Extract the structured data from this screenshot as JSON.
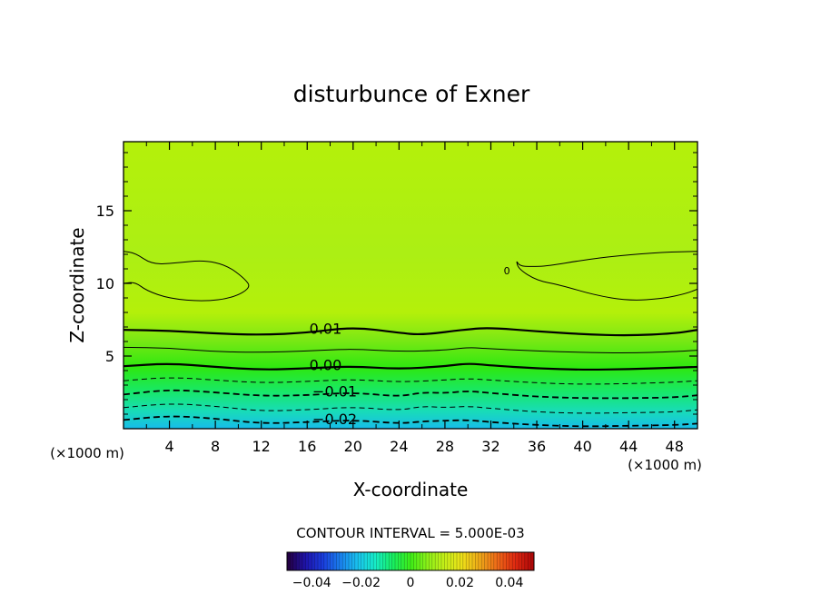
{
  "chart_data": {
    "type": "heatmap",
    "title": "disturbunce of Exner",
    "xlabel": "X-coordinate",
    "ylabel": "Z-coordinate",
    "x_unit_left": "(×1000 m)",
    "x_unit_right": "(×1000 m)",
    "xlim": [
      0,
      50
    ],
    "ylim": [
      0,
      19.75
    ],
    "xticks": [
      {
        "value": 4,
        "label": "4"
      },
      {
        "value": 8,
        "label": "8"
      },
      {
        "value": 12,
        "label": "12"
      },
      {
        "value": 16,
        "label": "16"
      },
      {
        "value": 20,
        "label": "20"
      },
      {
        "value": 24,
        "label": "24"
      },
      {
        "value": 28,
        "label": "28"
      },
      {
        "value": 32,
        "label": "32"
      },
      {
        "value": 36,
        "label": "36"
      },
      {
        "value": 40,
        "label": "40"
      },
      {
        "value": 44,
        "label": "44"
      },
      {
        "value": 48,
        "label": "48"
      }
    ],
    "yticks": [
      {
        "value": 5,
        "label": "5"
      },
      {
        "value": 10,
        "label": "10"
      },
      {
        "value": 15,
        "label": "15"
      }
    ],
    "contour_interval_text": "CONTOUR INTERVAL = 5.000E-03",
    "contour_labels": [
      {
        "text": "0.01",
        "x": 17.6,
        "z": 6.9
      },
      {
        "text": "0.00",
        "x": 17.6,
        "z": 4.4
      },
      {
        "text": "-0.01",
        "x": 18.4,
        "z": 2.6
      },
      {
        "text": "-0.02",
        "x": 18.4,
        "z": 0.7
      }
    ],
    "extra_labels": [
      {
        "text": "0",
        "x": 33.4,
        "z": 11.0
      }
    ],
    "contours": [
      {
        "level": 0.01,
        "style": "bold",
        "points": [
          [
            0,
            6.8
          ],
          [
            4,
            6.75
          ],
          [
            8,
            6.55
          ],
          [
            12,
            6.45
          ],
          [
            16,
            6.6
          ],
          [
            20,
            7.0
          ],
          [
            24,
            6.6
          ],
          [
            26,
            6.45
          ],
          [
            30,
            6.85
          ],
          [
            32,
            6.95
          ],
          [
            36,
            6.7
          ],
          [
            40,
            6.5
          ],
          [
            44,
            6.4
          ],
          [
            48,
            6.55
          ],
          [
            50,
            6.8
          ]
        ]
      },
      {
        "level": 0.005,
        "style": "thin",
        "points": [
          [
            0,
            5.6
          ],
          [
            4,
            5.55
          ],
          [
            8,
            5.3
          ],
          [
            12,
            5.25
          ],
          [
            16,
            5.35
          ],
          [
            20,
            5.5
          ],
          [
            24,
            5.3
          ],
          [
            28,
            5.4
          ],
          [
            30,
            5.6
          ],
          [
            32,
            5.5
          ],
          [
            36,
            5.35
          ],
          [
            40,
            5.25
          ],
          [
            44,
            5.2
          ],
          [
            48,
            5.3
          ],
          [
            50,
            5.4
          ]
        ]
      },
      {
        "level": 0.0,
        "style": "bold",
        "points": [
          [
            0,
            4.3
          ],
          [
            4,
            4.5
          ],
          [
            8,
            4.25
          ],
          [
            12,
            4.05
          ],
          [
            16,
            4.15
          ],
          [
            20,
            4.3
          ],
          [
            24,
            4.1
          ],
          [
            28,
            4.3
          ],
          [
            30,
            4.5
          ],
          [
            32,
            4.35
          ],
          [
            36,
            4.15
          ],
          [
            40,
            4.05
          ],
          [
            44,
            4.1
          ],
          [
            48,
            4.2
          ],
          [
            50,
            4.25
          ]
        ]
      },
      {
        "level": -0.005,
        "style": "dash-thin",
        "points": [
          [
            0,
            3.3
          ],
          [
            4,
            3.55
          ],
          [
            8,
            3.35
          ],
          [
            12,
            3.15
          ],
          [
            16,
            3.25
          ],
          [
            20,
            3.4
          ],
          [
            24,
            3.2
          ],
          [
            28,
            3.35
          ],
          [
            30,
            3.45
          ],
          [
            32,
            3.35
          ],
          [
            36,
            3.15
          ],
          [
            40,
            3.05
          ],
          [
            44,
            3.1
          ],
          [
            48,
            3.2
          ],
          [
            50,
            3.3
          ]
        ]
      },
      {
        "level": -0.01,
        "style": "dash-bold",
        "points": [
          [
            0,
            2.35
          ],
          [
            4,
            2.7
          ],
          [
            8,
            2.5
          ],
          [
            12,
            2.25
          ],
          [
            16,
            2.3
          ],
          [
            20,
            2.5
          ],
          [
            24,
            2.2
          ],
          [
            26,
            2.5
          ],
          [
            28,
            2.45
          ],
          [
            30,
            2.6
          ],
          [
            32,
            2.45
          ],
          [
            36,
            2.2
          ],
          [
            40,
            2.1
          ],
          [
            44,
            2.1
          ],
          [
            48,
            2.15
          ],
          [
            50,
            2.3
          ]
        ]
      },
      {
        "level": -0.015,
        "style": "dash-thin",
        "points": [
          [
            0,
            1.45
          ],
          [
            4,
            1.75
          ],
          [
            8,
            1.55
          ],
          [
            12,
            1.2
          ],
          [
            16,
            1.3
          ],
          [
            20,
            1.5
          ],
          [
            24,
            1.25
          ],
          [
            26,
            1.55
          ],
          [
            28,
            1.45
          ],
          [
            30,
            1.55
          ],
          [
            32,
            1.4
          ],
          [
            36,
            1.15
          ],
          [
            40,
            1.05
          ],
          [
            44,
            1.1
          ],
          [
            48,
            1.15
          ],
          [
            50,
            1.3
          ]
        ]
      },
      {
        "level": -0.02,
        "style": "dash-bold",
        "points": [
          [
            0,
            0.6
          ],
          [
            4,
            0.9
          ],
          [
            8,
            0.7
          ],
          [
            12,
            0.35
          ],
          [
            16,
            0.45
          ],
          [
            20,
            0.6
          ],
          [
            24,
            0.35
          ],
          [
            26,
            0.5
          ],
          [
            28,
            0.55
          ],
          [
            30,
            0.6
          ],
          [
            32,
            0.45
          ],
          [
            36,
            0.25
          ],
          [
            40,
            0.15
          ],
          [
            44,
            0.2
          ],
          [
            48,
            0.25
          ],
          [
            50,
            0.35
          ]
        ]
      }
    ],
    "closed_contours": [
      {
        "level": 0.015,
        "style": "thin",
        "points": [
          [
            0,
            12.2
          ],
          [
            1,
            12.1
          ],
          [
            2.5,
            11.3
          ],
          [
            4.5,
            11.4
          ],
          [
            7,
            11.6
          ],
          [
            9,
            11.25
          ],
          [
            10.6,
            10.3
          ],
          [
            11.1,
            9.7
          ],
          [
            9.5,
            9.0
          ],
          [
            7,
            8.75
          ],
          [
            4,
            8.95
          ],
          [
            2,
            9.5
          ],
          [
            1,
            10.1
          ],
          [
            0,
            10.0
          ]
        ]
      },
      {
        "level": 0.015,
        "style": "thin",
        "points": [
          [
            50,
            12.2
          ],
          [
            47,
            12.15
          ],
          [
            43,
            11.9
          ],
          [
            40,
            11.6
          ],
          [
            37,
            11.2
          ],
          [
            35.5,
            11.15
          ],
          [
            34.5,
            11.2
          ],
          [
            34.2,
            11.6
          ],
          [
            34.4,
            11.0
          ],
          [
            36,
            10.2
          ],
          [
            38,
            9.9
          ],
          [
            41,
            9.2
          ],
          [
            44,
            8.8
          ],
          [
            47,
            8.95
          ],
          [
            49,
            9.3
          ],
          [
            50,
            9.6
          ]
        ]
      }
    ],
    "colorbar": {
      "min": -0.05,
      "max": 0.05,
      "ticks": [
        {
          "value": -0.04,
          "label": "-0.04"
        },
        {
          "value": -0.02,
          "label": "-0.02"
        },
        {
          "value": 0,
          "label": "0"
        },
        {
          "value": 0.02,
          "label": "0.02"
        },
        {
          "value": 0.04,
          "label": "0.04"
        }
      ],
      "colors": [
        "#240045",
        "#1e14ac",
        "#1a3ede",
        "#1a82ee",
        "#18c4ee",
        "#17eec6",
        "#18ee60",
        "#3eee18",
        "#8ef018",
        "#c8f018",
        "#eede18",
        "#eea618",
        "#ee6818",
        "#e02a10",
        "#b00808"
      ]
    },
    "field_colors": {
      "high": "#b4f00a",
      "upper": "#acef14",
      "mid": "#7ee814",
      "zero": "#2ee810",
      "neg1": "#18e866",
      "neg2": "#18dcb8",
      "low": "#17bcea"
    }
  }
}
